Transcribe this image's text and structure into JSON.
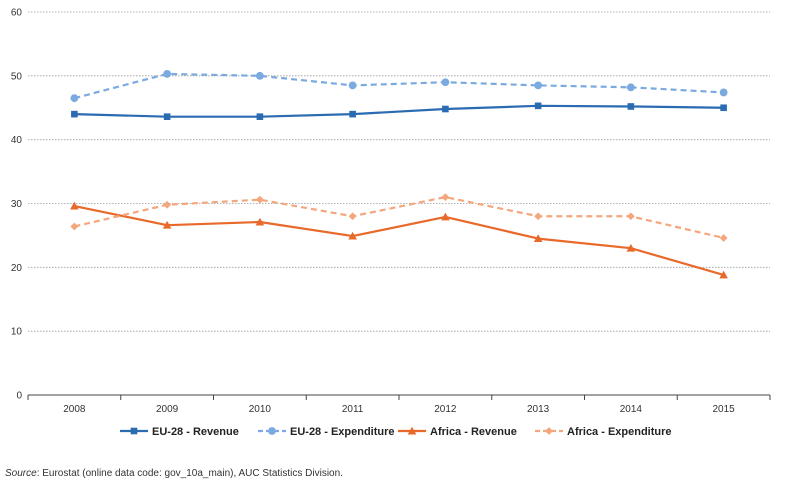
{
  "chart_data": {
    "type": "line",
    "title": "",
    "xlabel": "",
    "ylabel": "",
    "categories": [
      "2008",
      "2009",
      "2010",
      "2011",
      "2012",
      "2013",
      "2014",
      "2015"
    ],
    "ylim": [
      0,
      60
    ],
    "yticks": [
      0,
      10,
      20,
      30,
      40,
      50,
      60
    ],
    "grid": "horizontal dashed",
    "legend_position": "bottom",
    "series": [
      {
        "name": "EU-28 - Revenue",
        "color": "#2a6bb1",
        "line": "solid",
        "marker": "square",
        "values": [
          44.0,
          43.6,
          43.6,
          44.0,
          44.8,
          45.3,
          45.2,
          45.0
        ]
      },
      {
        "name": "EU-28 -  Expenditure",
        "color": "#7aaae0",
        "line": "dashed",
        "marker": "circle",
        "values": [
          46.5,
          50.3,
          50.0,
          48.5,
          49.0,
          48.5,
          48.2,
          47.4
        ]
      },
      {
        "name": "Africa - Revenue",
        "color": "#e8692a",
        "line": "solid",
        "marker": "triangle",
        "values": [
          29.6,
          26.6,
          27.1,
          24.9,
          27.9,
          24.5,
          23.0,
          18.8
        ]
      },
      {
        "name": "Africa - Expenditure",
        "color": "#f4a67c",
        "line": "dashed",
        "marker": "diamond",
        "values": [
          26.4,
          29.8,
          30.6,
          28.0,
          31.0,
          28.0,
          28.0,
          24.6
        ]
      }
    ]
  },
  "source": {
    "label": "Source",
    "text": ": Eurostat (online data code: gov_10a_main), AUC Statistics Division."
  }
}
